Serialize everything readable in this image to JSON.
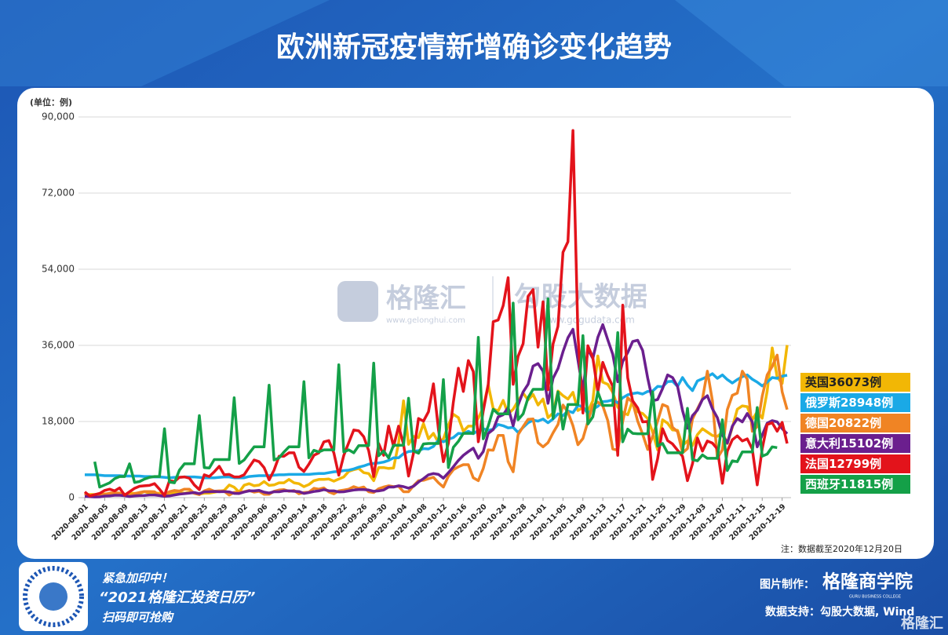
{
  "chart_data": {
    "type": "line",
    "title": "欧洲新冠疫情新增确诊变化趋势",
    "y_label": "(单位：例)",
    "note": "注：数据截至2020年12月20日",
    "categories": [
      "2020-08-01",
      null,
      null,
      null,
      "2020-08-05",
      null,
      null,
      null,
      "2020-08-09",
      null,
      null,
      null,
      "2020-08-13",
      null,
      null,
      null,
      "2020-08-17",
      null,
      null,
      null,
      "2020-08-21",
      null,
      null,
      null,
      "2020-08-25",
      null,
      null,
      null,
      "2020-08-29",
      null,
      null,
      null,
      "2020-09-02",
      null,
      null,
      null,
      "2020-09-06",
      null,
      null,
      null,
      "2020-09-10",
      null,
      null,
      null,
      "2020-09-14",
      null,
      null,
      null,
      "2020-09-18",
      null,
      null,
      null,
      "2020-09-22",
      null,
      null,
      null,
      "2020-09-26",
      null,
      null,
      null,
      "2020-09-30",
      null,
      null,
      null,
      "2020-10-04",
      null,
      null,
      null,
      "2020-10-08",
      null,
      null,
      null,
      "2020-10-12",
      null,
      null,
      null,
      "2020-10-16",
      null,
      null,
      null,
      "2020-10-20",
      null,
      null,
      null,
      "2020-10-24",
      null,
      null,
      null,
      "2020-10-28",
      null,
      null,
      null,
      "2020-11-01",
      null,
      null,
      null,
      "2020-11-05",
      null,
      null,
      null,
      "2020-11-09",
      null,
      null,
      null,
      "2020-11-13",
      null,
      null,
      null,
      "2020-11-17",
      null,
      null,
      null,
      "2020-11-21",
      null,
      null,
      null,
      "2020-11-25",
      null,
      null,
      null,
      "2020-11-29",
      null,
      null,
      null,
      "2020-12-03",
      null,
      null,
      null,
      "2020-12-07",
      null,
      null,
      null,
      "2020-12-11",
      null,
      null,
      null,
      "2020-12-15",
      null,
      null,
      null,
      "2020-12-19",
      null
    ],
    "ylim": [
      0,
      90000
    ],
    "yticks": [
      0,
      {
        "value": 18000,
        "label": "18,000"
      },
      {
        "value": 36000,
        "label": "36,000"
      },
      {
        "value": 54000,
        "label": "54,000"
      },
      {
        "value": 72000,
        "label": "72,000"
      },
      {
        "value": 90000,
        "label": "90,000"
      }
    ],
    "grid": true,
    "legend": "right",
    "series": [
      {
        "name": "英国36073例",
        "color": "#f2b705",
        "values": [
          700,
          750,
          750,
          760,
          890,
          950,
          870,
          1060,
          730,
          1050,
          1000,
          1010,
          1440,
          1040,
          1070,
          1040,
          710,
          810,
          1180,
          1180,
          1030,
          1290,
          1030,
          850,
          1040,
          1050,
          1280,
          1510,
          1700,
          2990,
          2460,
          1300,
          2940,
          3300,
          2800,
          2960,
          3800,
          2900,
          3000,
          3500,
          3500,
          4300,
          3500,
          3300,
          2600,
          3100,
          4000,
          4300,
          4300,
          4400,
          3900,
          4400,
          4900,
          6200,
          6600,
          6900,
          5900,
          5700,
          4000,
          7100,
          7100,
          6900,
          7000,
          12900,
          22900,
          12600,
          14500,
          14200,
          17500,
          13900,
          15200,
          13000,
          13900,
          17200,
          19700,
          18900,
          15700,
          16900,
          16900,
          18800,
          21300,
          26700,
          21000,
          20500,
          23000,
          19800,
          20900,
          22900,
          24700,
          23100,
          24400,
          21900,
          23300,
          18900,
          20000,
          25200,
          24100,
          23300,
          24900,
          20600,
          21300,
          20400,
          22900,
          33500,
          27300,
          26800,
          24900,
          21400,
          20100,
          19600,
          22900,
          20300,
          19900,
          18700,
          15500,
          11300,
          18400,
          17600,
          16000,
          15900,
          12300,
          13400,
          12300,
          14900,
          16300,
          15500,
          14700,
          14500,
          15400,
          12800,
          16600,
          20900,
          21700,
          21500,
          18400,
          20300,
          18800,
          25200,
          35400,
          28500,
          27000,
          36073
        ]
      },
      {
        "name": "俄罗斯28948例",
        "color": "#1aa9e6",
        "values": [
          5400,
          5400,
          5400,
          5300,
          5200,
          5200,
          5200,
          5200,
          5100,
          5100,
          5100,
          5100,
          5000,
          5000,
          4900,
          4900,
          4800,
          4700,
          4800,
          4800,
          4900,
          4900,
          4900,
          4800,
          4700,
          4700,
          4700,
          4800,
          4900,
          4900,
          4700,
          4700,
          4700,
          5000,
          5100,
          5200,
          5200,
          5200,
          5300,
          5400,
          5400,
          5500,
          5500,
          5500,
          5500,
          5500,
          5600,
          5700,
          5700,
          5900,
          6100,
          6200,
          6400,
          6500,
          6800,
          7200,
          7500,
          7900,
          8100,
          8200,
          8400,
          8800,
          9400,
          9400,
          10400,
          10900,
          11000,
          11100,
          11600,
          11500,
          12100,
          13600,
          13200,
          13800,
          14200,
          15200,
          15100,
          15700,
          15100,
          15900,
          16300,
          15900,
          16200,
          17300,
          17000,
          16500,
          16600,
          15400,
          16600,
          17700,
          18300,
          18100,
          18600,
          17700,
          18600,
          19800,
          19400,
          20500,
          20100,
          21800,
          21500,
          19900,
          20900,
          21600,
          22700,
          22800,
          23100,
          22400,
          23600,
          24300,
          24600,
          24800,
          24500,
          25100,
          25200,
          26300,
          26200,
          27400,
          27500,
          26300,
          28400,
          26600,
          25300,
          27600,
          28100,
          28600,
          29300,
          28200,
          29000,
          27900,
          27100,
          27900,
          28600,
          29000,
          28000,
          27300,
          26400,
          27300,
          28400,
          28200,
          28700,
          28948
        ]
      },
      {
        "name": "德国20822例",
        "color": "#f08424",
        "values": [
          950,
          240,
          500,
          880,
          750,
          1050,
          1150,
          1100,
          580,
          430,
          970,
          1220,
          1450,
          1450,
          1400,
          550,
          700,
          1400,
          1700,
          1550,
          2000,
          2000,
          1000,
          700,
          1600,
          2000,
          1500,
          1600,
          1500,
          610,
          1250,
          1200,
          1400,
          1700,
          1300,
          1500,
          800,
          800,
          1500,
          1800,
          1900,
          1500,
          1700,
          900,
          1200,
          1300,
          2200,
          2000,
          2300,
          1350,
          900,
          1600,
          1800,
          2000,
          2600,
          2200,
          2500,
          1400,
          1200,
          2100,
          2500,
          2800,
          2600,
          2700,
          1400,
          1400,
          2800,
          4000,
          4100,
          4500,
          4800,
          3500,
          2500,
          5100,
          6600,
          7300,
          7800,
          7800,
          4700,
          4000,
          6900,
          11300,
          11200,
          14700,
          14700,
          8500,
          6100,
          14900,
          16800,
          18500,
          18600,
          13000,
          12000,
          13000,
          15300,
          17300,
          21900,
          20200,
          17000,
          12500,
          14000,
          18000,
          21800,
          22600,
          21700,
          18200,
          11500,
          11200,
          18000,
          23600,
          22500,
          18100,
          15000,
          11400,
          14500,
          18100,
          22000,
          21500,
          16600,
          15600,
          10600,
          11600,
          18600,
          21000,
          23300,
          29900,
          22900,
          9300,
          11300,
          20800,
          24200,
          24700,
          29900,
          28000,
          15700,
          16800,
          24000,
          29000,
          31000,
          33700,
          25000,
          20822
        ]
      },
      {
        "name": "意大利15102例",
        "color": "#6b1f8e",
        "values": [
          300,
          240,
          160,
          190,
          380,
          400,
          550,
          550,
          460,
          260,
          410,
          480,
          520,
          630,
          630,
          480,
          320,
          400,
          640,
          840,
          950,
          1070,
          1200,
          950,
          1370,
          1400,
          1460,
          1400,
          1450,
          1360,
          1000,
          980,
          1330,
          1600,
          1590,
          1700,
          1300,
          1100,
          1400,
          1400,
          1600,
          1600,
          1500,
          1450,
          1000,
          1200,
          1450,
          1600,
          1900,
          1640,
          1600,
          1350,
          1400,
          1600,
          1800,
          1900,
          1900,
          1800,
          1500,
          1600,
          1800,
          2500,
          2500,
          2800,
          2600,
          2250,
          2700,
          3700,
          4500,
          5400,
          5700,
          5500,
          4600,
          5900,
          7300,
          8800,
          10000,
          10900,
          11700,
          9300,
          10900,
          15200,
          16100,
          19100,
          19600,
          21300,
          17000,
          21900,
          25000,
          26800,
          31100,
          31700,
          29900,
          22300,
          28200,
          30500,
          34500,
          37800,
          39800,
          32600,
          25300,
          35100,
          32900,
          37900,
          40900,
          37300,
          33900,
          27400,
          32200,
          34300,
          36900,
          37200,
          34800,
          28300,
          22900,
          23200,
          25800,
          29000,
          28400,
          26300,
          20600,
          16400,
          19400,
          20700,
          23200,
          24100,
          21000,
          18900,
          14800,
          12900,
          16900,
          18700,
          17900,
          19900,
          17900,
          12000,
          14800,
          17600,
          18200,
          17900,
          16300,
          15102
        ]
      },
      {
        "name": "法国12799例",
        "color": "#e3131b",
        "values": [
          1350,
          400,
          700,
          1000,
          1700,
          2000,
          1600,
          2300,
          600,
          1400,
          2200,
          2700,
          2800,
          2900,
          3300,
          2000,
          500,
          4000,
          3800,
          4800,
          4900,
          4600,
          3000,
          1900,
          5400,
          5000,
          6100,
          7400,
          5400,
          5500,
          4900,
          4900,
          5400,
          7200,
          8900,
          8500,
          7100,
          4200,
          6500,
          9800,
          9800,
          10600,
          10600,
          7200,
          6200,
          7900,
          10000,
          10600,
          13200,
          13500,
          10600,
          5300,
          10000,
          13000,
          16000,
          15800,
          14400,
          11100,
          5000,
          12800,
          10000,
          16900,
          12100,
          16900,
          12600,
          5100,
          10500,
          18700,
          18100,
          20300,
          26900,
          16100,
          8500,
          12900,
          22600,
          30600,
          25100,
          32400,
          29800,
          13200,
          20500,
          26700,
          41600,
          42000,
          45400,
          52000,
          26800,
          33400,
          36400,
          47600,
          49200,
          35600,
          46300,
          25500,
          36300,
          40500,
          58000,
          60500,
          86800,
          38600,
          20000,
          35900,
          33100,
          25000,
          32000,
          28800,
          26300,
          10000,
          45500,
          28300,
          22900,
          21200,
          17900,
          18000,
          4300,
          9200,
          16300,
          13500,
          12700,
          11200,
          9800,
          4000,
          8000,
          14100,
          11000,
          13400,
          12900,
          11500,
          3400,
          11000,
          13700,
          14600,
          13400,
          13900,
          11500,
          3000,
          11600,
          17300,
          17700,
          15700,
          17800,
          12799
        ]
      },
      {
        "name": "西班牙11815例",
        "color": "#14a048",
        "values": [
          null,
          null,
          8500,
          2500,
          3000,
          3500,
          4500,
          5000,
          5000,
          8000,
          3600,
          3800,
          4400,
          4800,
          5000,
          5000,
          16300,
          3700,
          3500,
          6500,
          8000,
          8000,
          8000,
          19400,
          7100,
          7000,
          9000,
          9000,
          9000,
          9000,
          23600,
          8100,
          8900,
          10500,
          12000,
          12000,
          12000,
          26600,
          8900,
          9400,
          10800,
          12000,
          12000,
          12000,
          27400,
          9400,
          11200,
          10800,
          11300,
          11300,
          11300,
          31400,
          10800,
          11300,
          10600,
          12300,
          12300,
          12300,
          31800,
          9900,
          11000,
          9400,
          12400,
          12400,
          12400,
          23500,
          11000,
          10500,
          12700,
          12800,
          12800,
          12800,
          27900,
          7100,
          11900,
          13300,
          15200,
          15200,
          15200,
          37900,
          13900,
          16900,
          20900,
          19800,
          19800,
          19800,
          46000,
          18400,
          19800,
          23600,
          25600,
          25600,
          25600,
          47000,
          18700,
          25000,
          16200,
          22000,
          22000,
          22000,
          38300,
          17400,
          19100,
          25000,
          21800,
          21800,
          21800,
          39000,
          13200,
          16200,
          15200,
          15100,
          15100,
          15100,
          25000,
          12200,
          12800,
          10600,
          10600,
          10600,
          10600,
          21100,
          9000,
          8700,
          10100,
          9300,
          9300,
          9300,
          18400,
          6400,
          8700,
          8500,
          10800,
          10800,
          10800,
          21300,
          9800,
          10300,
          12000,
          11815,
          null,
          null
        ]
      }
    ]
  },
  "watermark": {
    "brand": "格隆汇",
    "brand_url": "www.gelonghui.com",
    "data_brand": "勾股大数据",
    "data_url": "www.gogudata.com"
  },
  "footer": {
    "promo_line1": "紧急加印中！",
    "promo_line2": "“2021格隆汇投资日历”",
    "promo_line3": "扫码即可抢购",
    "maker_label": "图片制作：",
    "maker": "格隆商学院",
    "maker_sub": "GURU BUSINESS COLLEGE",
    "source": "数据支持：勾股大数据, Wind",
    "corner_logo": "格隆汇"
  }
}
